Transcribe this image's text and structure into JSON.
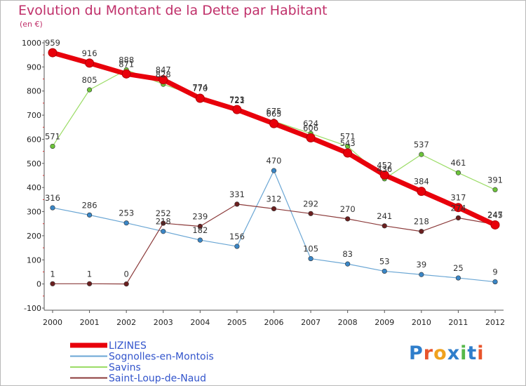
{
  "title": "Evolution du Montant de la Dette par Habitant",
  "unit": "(en €)",
  "logo": {
    "text": "Proxiti",
    "letter_colors": [
      "#2f7ecb",
      "#e8542b",
      "#f0a21e",
      "#2f7ecb",
      "#56b84a",
      "#2f7ecb",
      "#e8542b"
    ]
  },
  "chart_data": {
    "type": "line",
    "x": [
      "2000",
      "2001",
      "2002",
      "2003",
      "2004",
      "2005",
      "2006",
      "2007",
      "2008",
      "2009",
      "2010",
      "2011",
      "2012"
    ],
    "ylim": [
      -100,
      1000
    ],
    "yticks": [
      "1000",
      "900",
      "800",
      "700",
      "600",
      "500",
      "400",
      "300",
      "200",
      "100",
      "0",
      "-100"
    ],
    "grid": false,
    "legend_position": "bottom-left",
    "series": [
      {
        "name": "Savins",
        "color": "#9bdc66",
        "marker": "#6cc43a",
        "width": 1.2,
        "values": [
          571,
          805,
          888,
          828,
          774,
          721,
          675,
          624,
          571,
          436,
          537,
          461,
          391
        ],
        "labels": [
          "571",
          "805",
          "888",
          "828",
          "774",
          "721",
          "675",
          "624",
          "571",
          "436",
          "537",
          "461",
          "391"
        ]
      },
      {
        "name": "Sognolles-en-Montois",
        "color": "#6aa6d4",
        "marker": "#3a86c6",
        "width": 1.2,
        "values": [
          316,
          286,
          253,
          218,
          182,
          156,
          470,
          105,
          83,
          53,
          39,
          25,
          9
        ],
        "labels": [
          "316",
          "286",
          "253",
          "218",
          "182",
          "156",
          "470",
          "105",
          "83",
          "53",
          "39",
          "25",
          "9"
        ]
      },
      {
        "name": "Saint-Loup-de-Naud",
        "color": "#8b3a3a",
        "marker": "#6b1f1f",
        "width": 1.2,
        "values": [
          1,
          1,
          0,
          252,
          239,
          331,
          312,
          292,
          270,
          241,
          218,
          274,
          247
        ],
        "labels": [
          "1",
          "1",
          "0",
          "252",
          "239",
          "331",
          "312",
          "292",
          "270",
          "241",
          "218",
          "274",
          "247"
        ]
      },
      {
        "name": "LIZINES",
        "color": "#e8000b",
        "marker": "#e8000b",
        "width": 7,
        "values": [
          959,
          916,
          871,
          847,
          770,
          723,
          665,
          606,
          543,
          452,
          384,
          317,
          245
        ],
        "labels": [
          "959",
          "916",
          "871",
          "847",
          "770",
          "723",
          "665",
          "606",
          "543",
          "452",
          "384",
          "317",
          "245"
        ]
      }
    ],
    "legend_order": [
      "LIZINES",
      "Sognolles-en-Montois",
      "Savins",
      "Saint-Loup-de-Naud"
    ]
  }
}
